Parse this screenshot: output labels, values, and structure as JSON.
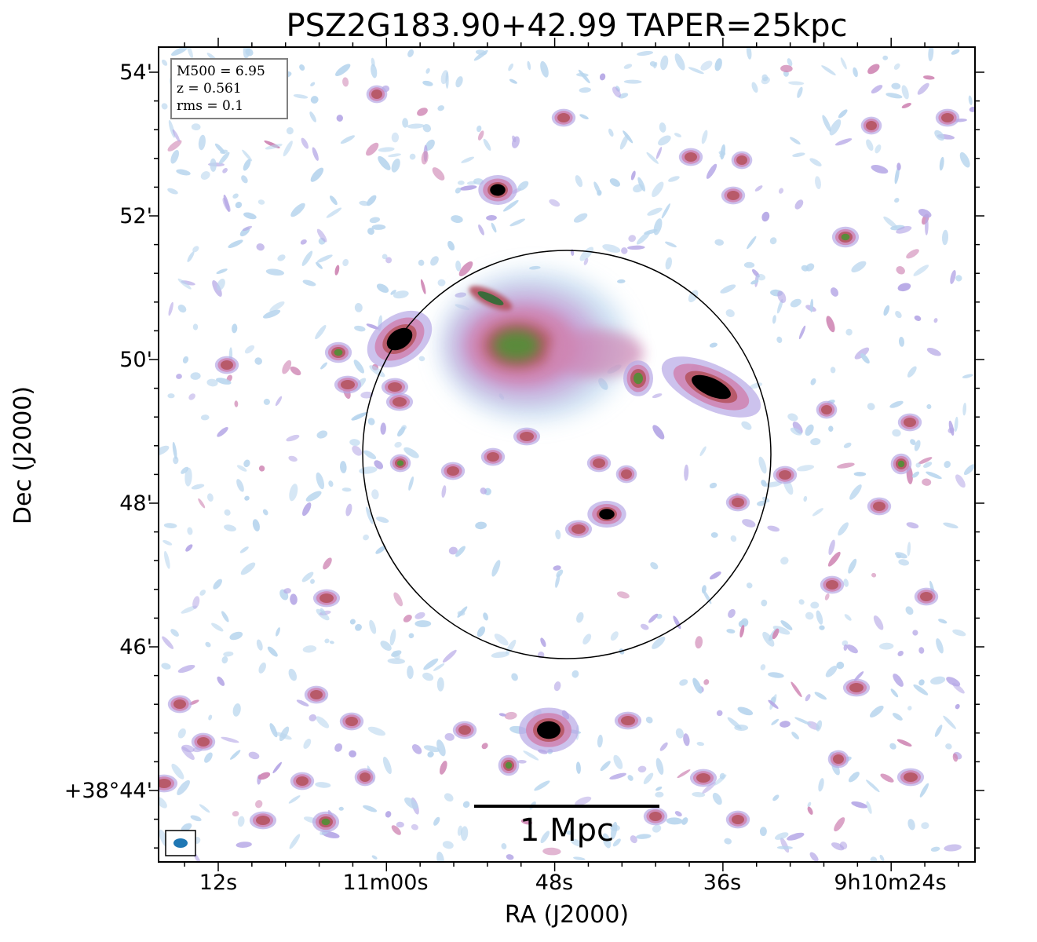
{
  "figure": {
    "title": "PSZ2G183.90+42.99 TAPER=25kpc",
    "xlabel": "RA (J2000)",
    "ylabel": "Dec (J2000)",
    "x_tick_labels": [
      "12s",
      "11m00s",
      "48s",
      "36s",
      "9h10m24s"
    ],
    "y_tick_labels": [
      "54'",
      "52'",
      "50'",
      "48'",
      "46'",
      "+38°44'"
    ],
    "info": {
      "mass_line": "M500 = 6.95",
      "redshift_line": "z = 0.561",
      "rms_line": "rms = 0.1"
    },
    "scale_bar_label": "1 Mpc",
    "colors": {
      "faint_emission": "#b9d6ee",
      "lavender": "#b6a8e6",
      "pink": "#cf86b4",
      "red": "#b85a6a",
      "green": "#5a8a3a",
      "core": "#000000",
      "beam": "#1f77b4"
    }
  }
}
